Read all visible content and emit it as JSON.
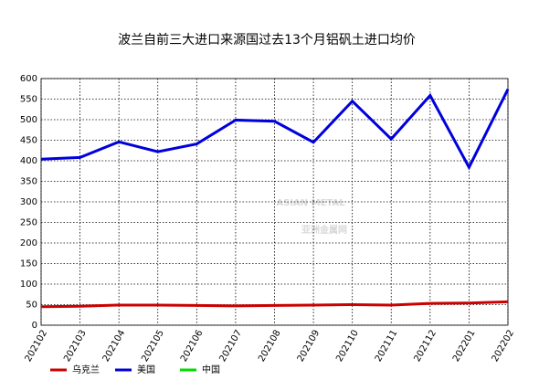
{
  "chart_data": {
    "type": "line",
    "title": "波兰自前三大进口来源国过去13个月铝矾土进口均价",
    "categories": [
      "202102",
      "202103",
      "202104",
      "202105",
      "202106",
      "202107",
      "202108",
      "202109",
      "202110",
      "202111",
      "202112",
      "202201",
      "202202"
    ],
    "series": [
      {
        "name": "乌克兰",
        "color": "#cc0000",
        "values": [
          45,
          46,
          49,
          49,
          48,
          47,
          48,
          49,
          50,
          49,
          53,
          54,
          57
        ]
      },
      {
        "name": "美国",
        "color": "#0000dd",
        "values": [
          404,
          408,
          446,
          422,
          441,
          499,
          496,
          445,
          545,
          453,
          559,
          384,
          574
        ]
      },
      {
        "name": "中国",
        "color": "#00dd00",
        "values": [
          null,
          null,
          null,
          null,
          null,
          null,
          null,
          null,
          null,
          null,
          null,
          null,
          null
        ]
      }
    ],
    "ylim": [
      0,
      600
    ],
    "yticks": [
      0,
      50,
      100,
      150,
      200,
      250,
      300,
      350,
      400,
      450,
      500,
      550,
      600
    ],
    "grid": true,
    "watermark": [
      "ASIAN METAL",
      "亚洲金属网"
    ]
  }
}
